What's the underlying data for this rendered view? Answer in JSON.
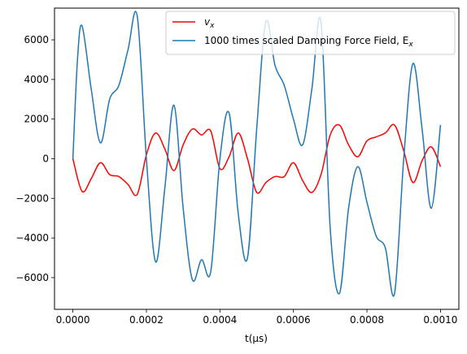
{
  "chart_data": {
    "type": "line",
    "title": "",
    "xlabel": "t(μs)",
    "ylabel": "",
    "xlim": [
      -5e-05,
      0.00105
    ],
    "ylim": [
      -7600,
      7600
    ],
    "xticks": [
      0.0,
      0.0002,
      0.0004,
      0.0006,
      0.0008,
      0.001
    ],
    "xtick_labels": [
      "0.0000",
      "0.0002",
      "0.0004",
      "0.0006",
      "0.0008",
      "0.0010"
    ],
    "yticks": [
      -6000,
      -4000,
      -2000,
      0,
      2000,
      4000,
      6000
    ],
    "ytick_labels": [
      "−6000",
      "−4000",
      "−2000",
      "0",
      "2000",
      "4000",
      "6000"
    ],
    "grid": false,
    "legend_position": "top-right",
    "series": [
      {
        "name": "v_x",
        "legend_main": "v",
        "legend_sub": "x",
        "color": "#ff0000",
        "x": [
          0.0,
          2.5e-05,
          5e-05,
          7.5e-05,
          0.0001,
          0.000125,
          0.00015,
          0.000175,
          0.0002,
          0.000225,
          0.00025,
          0.000275,
          0.0003,
          0.000325,
          0.00035,
          0.000375,
          0.0004,
          0.000425,
          0.00045,
          0.000475,
          0.0005,
          0.000525,
          0.00055,
          0.000575,
          0.0006,
          0.000625,
          0.00065,
          0.000675,
          0.0007,
          0.000725,
          0.00075,
          0.000775,
          0.0008,
          0.000825,
          0.00085,
          0.000875,
          0.0009,
          0.000925,
          0.00095,
          0.000975,
          0.001
        ],
        "y": [
          0,
          -1650,
          -1000,
          -200,
          -800,
          -900,
          -1300,
          -1800,
          200,
          1300,
          500,
          -600,
          700,
          1500,
          1200,
          1400,
          -500,
          100,
          1300,
          0,
          -1700,
          -1200,
          -900,
          -900,
          -200,
          -1100,
          -1700,
          -800,
          1200,
          1700,
          700,
          100,
          900,
          1100,
          1300,
          1700,
          400,
          -1200,
          -100,
          600,
          -400
        ]
      },
      {
        "name": "1000 times scaled Damping Force Field, E_x",
        "legend_main": "1000 times scaled Damping Force Field, E",
        "legend_sub": "x",
        "color": "#1f77b4",
        "x": [
          0.0,
          1.25e-05,
          2.5e-05,
          5e-05,
          7.5e-05,
          0.0001,
          0.000125,
          0.00015,
          0.000175,
          0.0002,
          0.000225,
          0.00025,
          0.000275,
          0.0003,
          0.000325,
          0.00035,
          0.000375,
          0.0004,
          0.000425,
          0.00045,
          0.000475,
          0.0005,
          0.000525,
          0.00055,
          0.000575,
          0.0006,
          0.000625,
          0.00065,
          0.000675,
          0.0007,
          0.000725,
          0.00075,
          0.000775,
          0.0008,
          0.000825,
          0.00085,
          0.000875,
          0.0009,
          0.000925,
          0.00095,
          0.000975,
          0.001
        ],
        "y": [
          0,
          5000,
          6700,
          3500,
          800,
          3000,
          3700,
          5500,
          7200,
          0,
          -5200,
          -1500,
          2700,
          -2500,
          -6100,
          -5100,
          -5700,
          0,
          2300,
          -2800,
          -5000,
          1500,
          6900,
          4700,
          3700,
          2000,
          700,
          3500,
          6900,
          -3500,
          -6800,
          -2500,
          -400,
          -2200,
          -3900,
          -4500,
          -6800,
          0,
          4800,
          1500,
          -2500,
          1700
        ]
      }
    ]
  }
}
